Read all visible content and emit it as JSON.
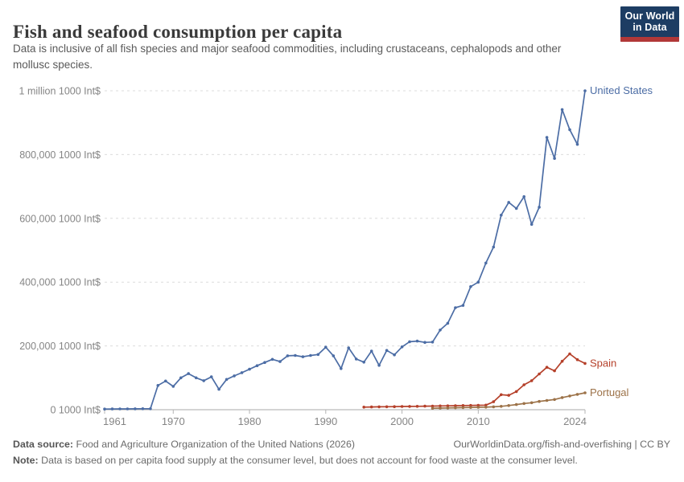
{
  "header": {
    "title": "Fish and seafood consumption per capita",
    "subtitle": "Data is inclusive of all fish species and major seafood commodities, including crustaceans, cephalopods and other mollusc species.",
    "logo": {
      "line1": "Our World",
      "line2": "in Data",
      "bg_color": "#1d3d63",
      "stripe_color": "#b13838",
      "text_color": "#ffffff"
    }
  },
  "footer": {
    "datasource_label": "Data source:",
    "datasource_text": "Food and Agriculture Organization of the United Nations (2026)",
    "credit_url": "OurWorldinData.org/fish-and-overfishing",
    "separator": " | ",
    "license": "CC BY",
    "note_label": "Note:",
    "note_text": "Data is based on per capita food supply at the consumer level, but does not account for food waste at the consumer level."
  },
  "chart_data": {
    "type": "line",
    "title": "Fish and seafood consumption per capita",
    "unit": "1000 Int$",
    "xlim": [
      1961,
      2024
    ],
    "ylim": [
      0,
      1000000
    ],
    "grid": true,
    "legend_position": "right-of-line-ends",
    "x_ticks": [
      1961,
      1970,
      1980,
      1990,
      2000,
      2010,
      2024
    ],
    "y_ticks": [
      {
        "value": 0,
        "label": "0 1000 Int$"
      },
      {
        "value": 200000,
        "label": "200,000 1000 Int$"
      },
      {
        "value": 400000,
        "label": "400,000 1000 Int$"
      },
      {
        "value": 600000,
        "label": "600,000 1000 Int$"
      },
      {
        "value": 800000,
        "label": "800,000 1000 Int$"
      },
      {
        "value": 1000000,
        "label": "1 million 1000 Int$"
      }
    ],
    "series": [
      {
        "name": "United States",
        "color": "#4c6da5",
        "start_year": 1961,
        "values": [
          2000,
          2200,
          2400,
          2600,
          2800,
          2900,
          3000,
          76000,
          90000,
          73000,
          100000,
          113000,
          100000,
          91000,
          103000,
          64000,
          95000,
          106000,
          116000,
          127000,
          138000,
          148000,
          158000,
          151000,
          169000,
          170000,
          166000,
          170000,
          173000,
          196000,
          169000,
          129000,
          194000,
          159000,
          149000,
          184000,
          139000,
          186000,
          172000,
          197000,
          213000,
          215000,
          211000,
          212000,
          250000,
          271000,
          320000,
          327000,
          386000,
          400000,
          460000,
          510000,
          610000,
          650000,
          631000,
          668000,
          581000,
          635000,
          854000,
          788000,
          941000,
          878000,
          832000,
          1000000
        ]
      },
      {
        "name": "Spain",
        "color": "#b5402a",
        "start_year": 1995,
        "values": [
          8000,
          8500,
          9000,
          9200,
          9500,
          10000,
          10300,
          10700,
          11000,
          11400,
          11800,
          12200,
          12700,
          13100,
          13400,
          13800,
          14300,
          25000,
          47000,
          45000,
          57000,
          78000,
          91000,
          112000,
          133000,
          122000,
          152000,
          175000,
          157000,
          145000
        ]
      },
      {
        "name": "Portugal",
        "color": "#9c7248",
        "start_year": 2004,
        "values": [
          4500,
          5000,
          5500,
          6000,
          6500,
          7000,
          7500,
          8000,
          9000,
          10500,
          13000,
          16000,
          19500,
          22000,
          26000,
          29000,
          32000,
          38000,
          43000,
          48000,
          53000
        ]
      }
    ]
  }
}
